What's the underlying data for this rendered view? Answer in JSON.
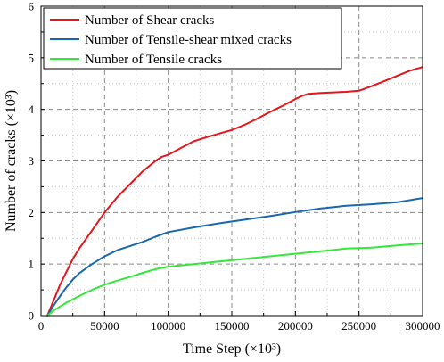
{
  "chart_data": {
    "type": "line",
    "xlabel": "Time Step (×10³)",
    "ylabel": "Number of cracks (×10³)",
    "xlim": [
      0,
      300000
    ],
    "ylim": [
      0,
      6
    ],
    "xticks": [
      0,
      50000,
      100000,
      150000,
      200000,
      250000,
      300000
    ],
    "yticks": [
      0,
      1,
      2,
      3,
      4,
      5,
      6
    ],
    "grid": true,
    "grid_style": "dashed",
    "minor_grid": "dotted",
    "legend_position": "top-left",
    "series": [
      {
        "name": "Number of Shear cracks",
        "color": "#e8141b",
        "x": [
          5000,
          10000,
          15000,
          20000,
          25000,
          30000,
          40000,
          50000,
          60000,
          70000,
          80000,
          90000,
          95000,
          100000,
          110000,
          120000,
          130000,
          140000,
          150000,
          160000,
          170000,
          180000,
          190000,
          200000,
          205000,
          210000,
          220000,
          230000,
          240000,
          250000,
          260000,
          270000,
          280000,
          290000,
          300000
        ],
        "y": [
          0,
          0.3,
          0.6,
          0.85,
          1.1,
          1.3,
          1.65,
          2.0,
          2.3,
          2.55,
          2.8,
          3.0,
          3.08,
          3.12,
          3.25,
          3.38,
          3.46,
          3.53,
          3.6,
          3.7,
          3.82,
          3.95,
          4.07,
          4.2,
          4.26,
          4.3,
          4.32,
          4.33,
          4.34,
          4.36,
          4.45,
          4.55,
          4.65,
          4.75,
          4.82
        ]
      },
      {
        "name": "Number of Tensile-shear mixed cracks",
        "color": "#1967b0",
        "x": [
          5000,
          10000,
          15000,
          20000,
          25000,
          30000,
          40000,
          50000,
          60000,
          70000,
          80000,
          90000,
          100000,
          120000,
          140000,
          160000,
          180000,
          200000,
          220000,
          240000,
          260000,
          280000,
          300000
        ],
        "y": [
          0,
          0.2,
          0.38,
          0.55,
          0.7,
          0.82,
          1.0,
          1.15,
          1.27,
          1.35,
          1.43,
          1.53,
          1.62,
          1.71,
          1.79,
          1.86,
          1.93,
          2.01,
          2.08,
          2.13,
          2.16,
          2.2,
          2.28
        ]
      },
      {
        "name": "Number of Tensile cracks",
        "color": "#33e83a",
        "x": [
          5000,
          10000,
          20000,
          30000,
          40000,
          50000,
          60000,
          70000,
          80000,
          90000,
          100000,
          120000,
          140000,
          160000,
          180000,
          200000,
          220000,
          240000,
          260000,
          280000,
          300000
        ],
        "y": [
          0,
          0.1,
          0.25,
          0.38,
          0.5,
          0.6,
          0.68,
          0.75,
          0.83,
          0.9,
          0.95,
          1.0,
          1.05,
          1.1,
          1.15,
          1.2,
          1.25,
          1.3,
          1.32,
          1.36,
          1.4
        ]
      }
    ]
  }
}
